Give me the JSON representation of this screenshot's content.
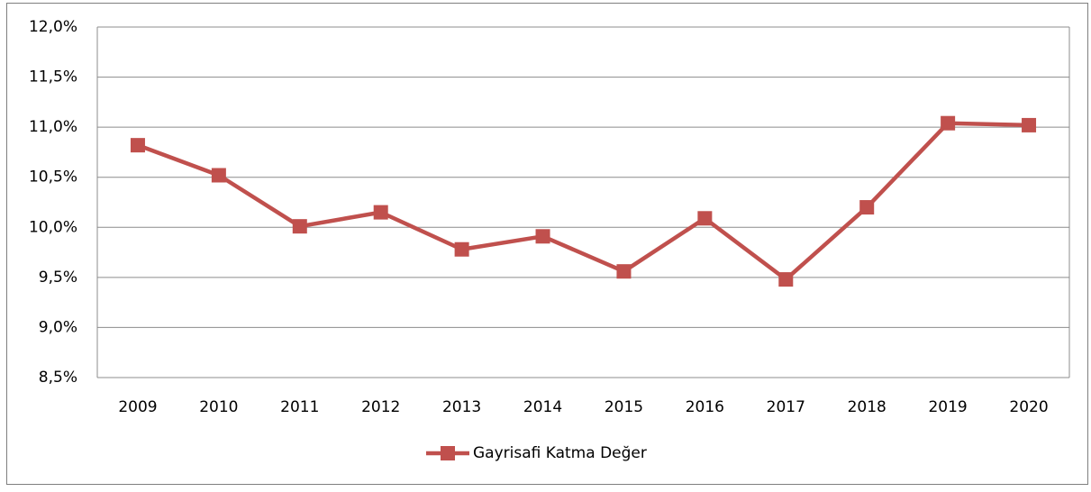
{
  "chart_data": {
    "type": "line",
    "categories": [
      "2009",
      "2010",
      "2011",
      "2012",
      "2013",
      "2014",
      "2015",
      "2016",
      "2017",
      "2018",
      "2019",
      "2020"
    ],
    "series": [
      {
        "name": "Gayrisafi Katma Değer",
        "color": "#c0504d",
        "values": [
          10.82,
          10.52,
          10.01,
          10.15,
          9.78,
          9.91,
          9.56,
          10.09,
          9.48,
          10.2,
          11.04,
          11.02
        ]
      }
    ],
    "ylim": [
      8.5,
      12
    ],
    "yticks": [
      {
        "value": 8.5,
        "label": "8,5%"
      },
      {
        "value": 9,
        "label": "9,0%"
      },
      {
        "value": 9.5,
        "label": "9,5%"
      },
      {
        "value": 10,
        "label": "10,0%"
      },
      {
        "value": 10.5,
        "label": "10,5%"
      },
      {
        "value": 11,
        "label": "11,0%"
      },
      {
        "value": 11.5,
        "label": "11,5%"
      },
      {
        "value": 12,
        "label": "12,0%"
      }
    ],
    "grid": true,
    "legend": "bottom"
  }
}
